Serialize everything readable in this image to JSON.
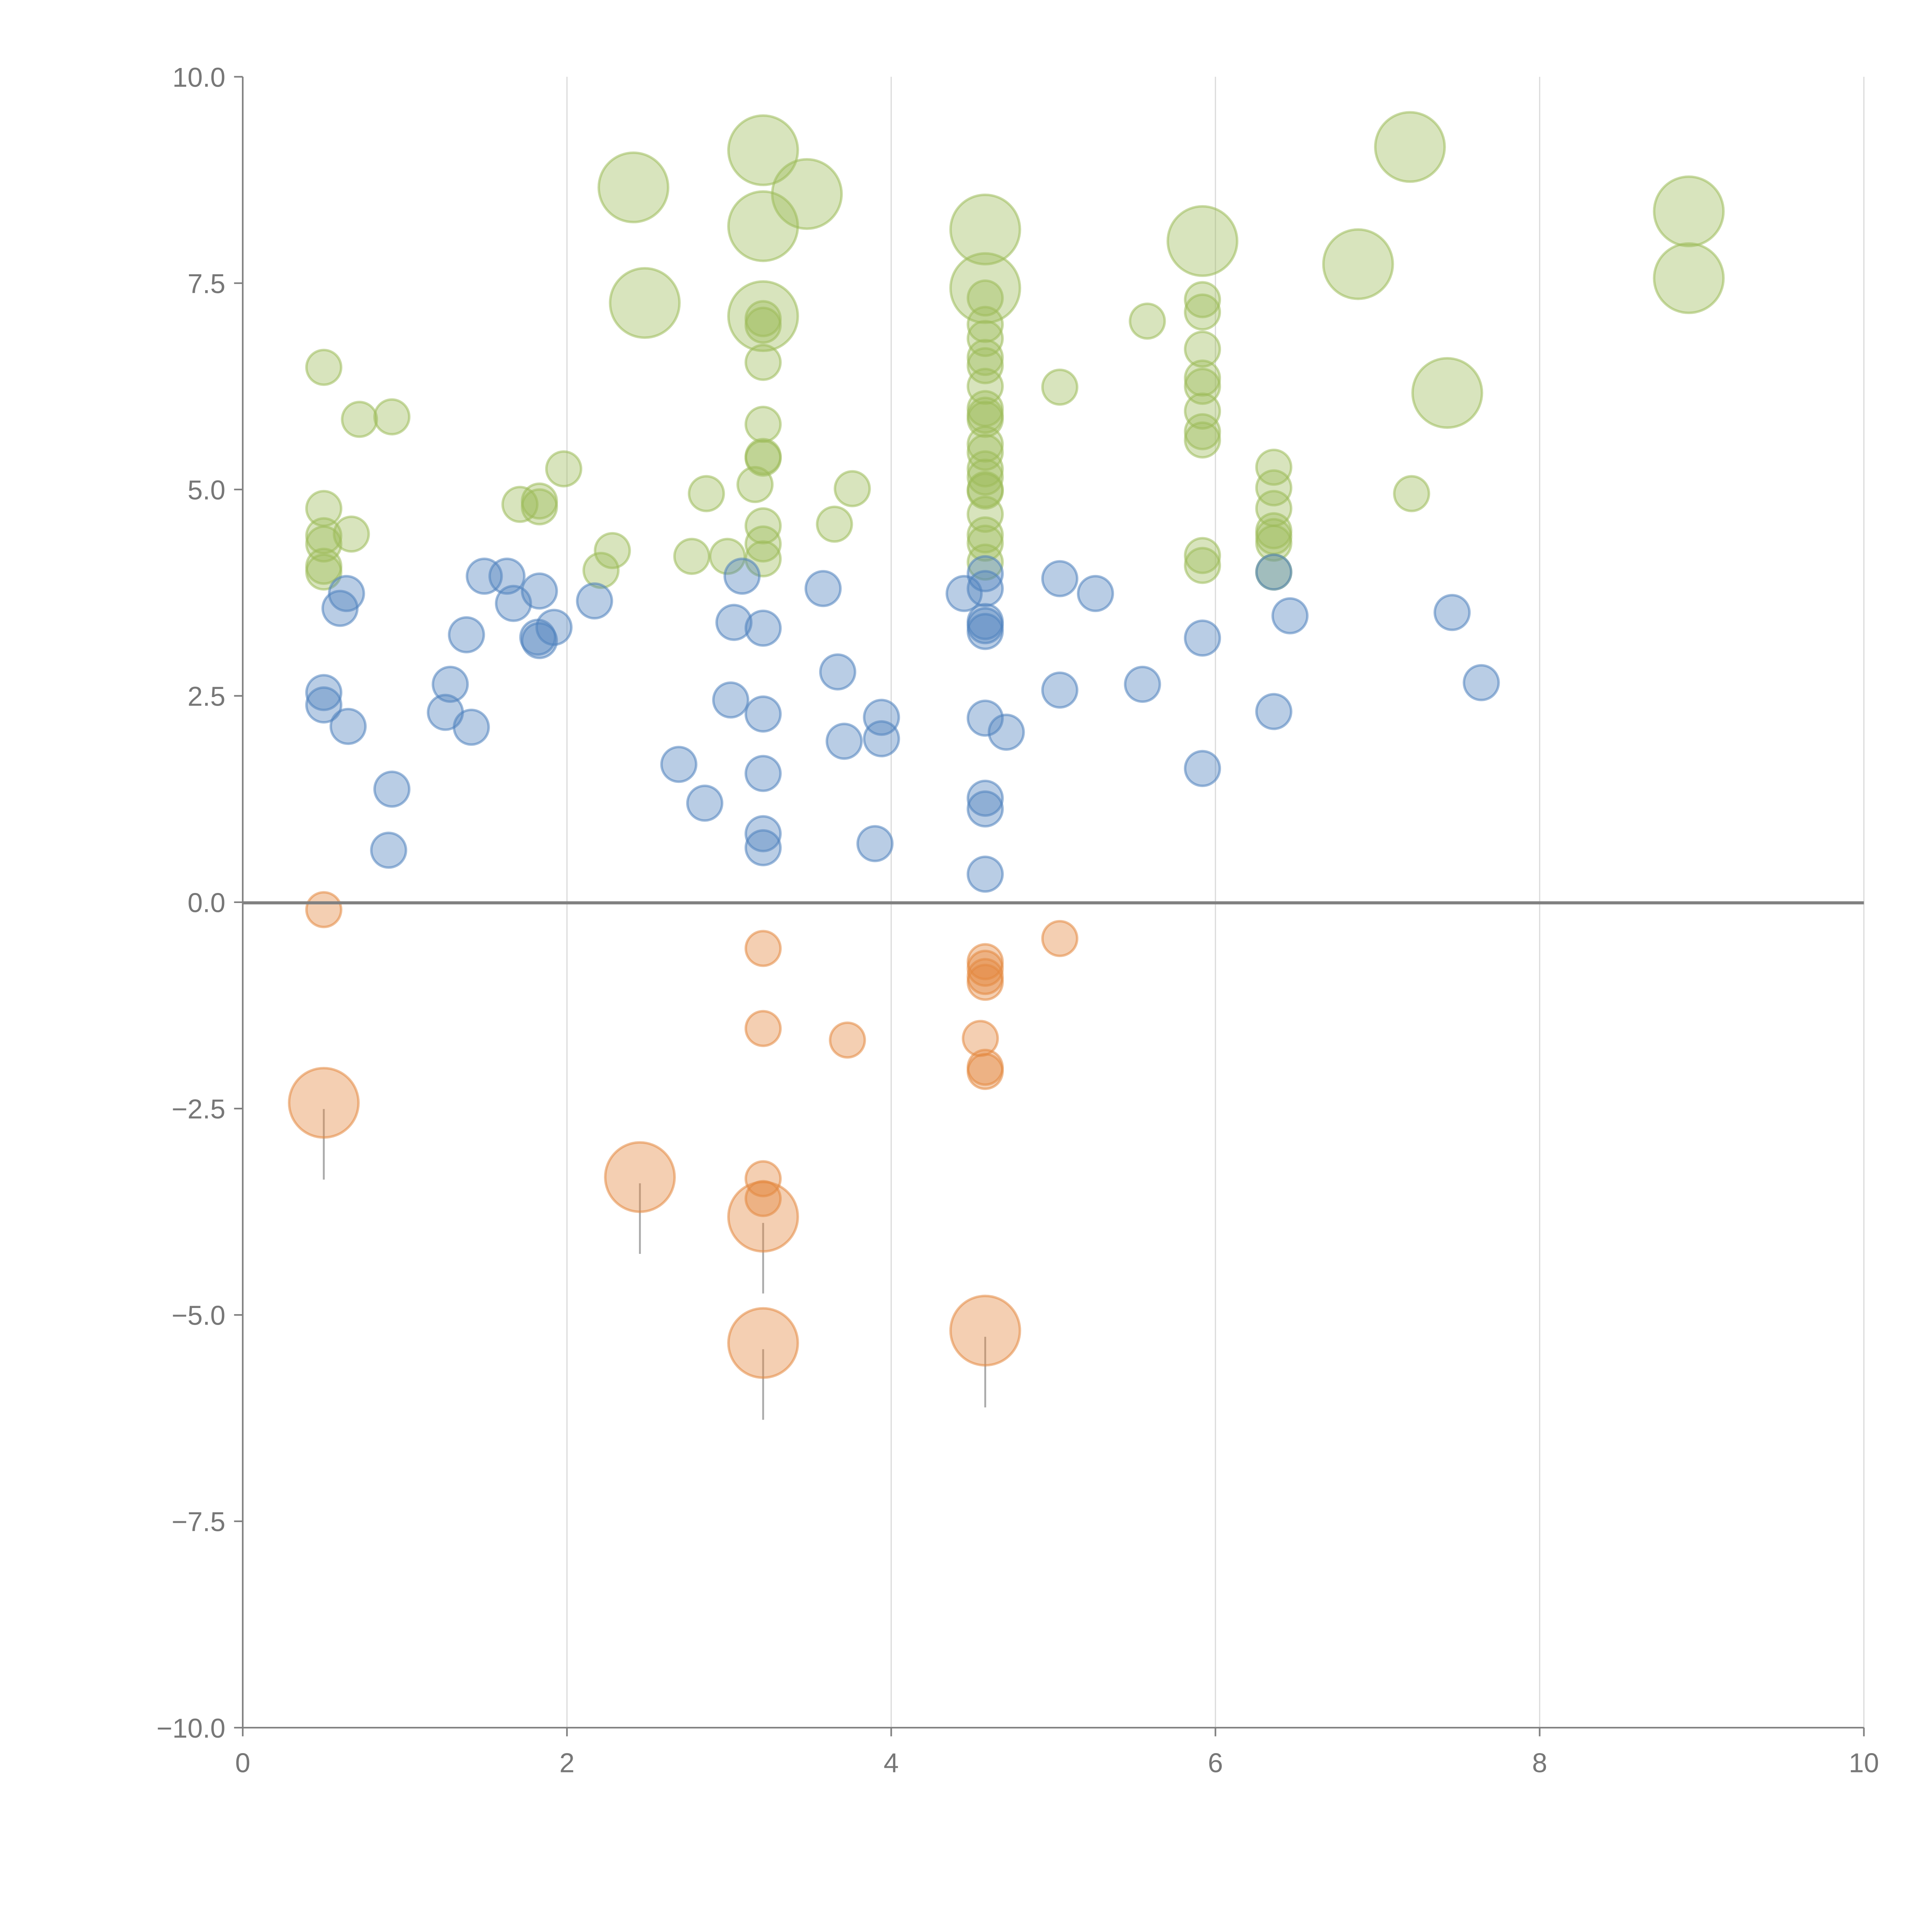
{
  "chart_data": {
    "type": "scatter",
    "title": "",
    "xlabel": "",
    "ylabel": "",
    "xlim": [
      0,
      10
    ],
    "ylim": [
      -10,
      10
    ],
    "x_ticks": [
      "0",
      "2",
      "4",
      "6",
      "8",
      "10"
    ],
    "y_ticks": [
      "10.0",
      "7.5",
      "5.0",
      "2.5",
      "0.0",
      "−2.5",
      "−5.0",
      "−7.5",
      "−10.0"
    ],
    "grid": "vertical",
    "series": [
      {
        "name": "green",
        "color": "#9dbb5a",
        "points": [
          [
            0.5,
            6.48,
            1
          ],
          [
            0.72,
            5.85,
            1
          ],
          [
            0.92,
            5.88,
            1
          ],
          [
            0.5,
            4.77,
            1
          ],
          [
            0.5,
            4.44,
            1
          ],
          [
            0.5,
            4.34,
            1
          ],
          [
            0.67,
            4.46,
            1
          ],
          [
            0.5,
            4.07,
            1
          ],
          [
            0.5,
            4.0,
            1
          ],
          [
            1.71,
            4.82,
            1
          ],
          [
            1.83,
            4.86,
            1
          ],
          [
            1.83,
            4.79,
            1
          ],
          [
            1.98,
            5.25,
            1
          ],
          [
            2.28,
            4.26,
            1
          ],
          [
            2.21,
            4.02,
            1
          ],
          [
            2.86,
            4.95,
            1
          ],
          [
            2.77,
            4.19,
            1
          ],
          [
            2.99,
            4.19,
            1
          ],
          [
            3.16,
            5.06,
            1
          ],
          [
            3.21,
            5.79,
            1
          ],
          [
            3.21,
            5.4,
            1
          ],
          [
            3.21,
            5.38,
            1
          ],
          [
            3.21,
            4.56,
            1
          ],
          [
            3.21,
            4.34,
            1
          ],
          [
            3.21,
            4.16,
            1
          ],
          [
            3.21,
            6.54,
            1
          ],
          [
            3.21,
            7.07,
            1
          ],
          [
            3.21,
            6.99,
            1
          ],
          [
            3.65,
            4.58,
            1
          ],
          [
            3.76,
            5.01,
            1
          ],
          [
            4.58,
            7.32,
            1
          ],
          [
            4.58,
            7.0,
            1
          ],
          [
            4.58,
            6.83,
            1
          ],
          [
            4.58,
            6.6,
            1
          ],
          [
            4.58,
            6.5,
            1
          ],
          [
            4.58,
            6.25,
            1
          ],
          [
            4.58,
            5.98,
            1
          ],
          [
            4.58,
            5.9,
            1
          ],
          [
            4.58,
            5.85,
            1
          ],
          [
            4.58,
            5.55,
            1
          ],
          [
            4.58,
            5.45,
            1
          ],
          [
            4.58,
            5.25,
            1
          ],
          [
            4.58,
            5.15,
            1
          ],
          [
            4.58,
            5.0,
            1
          ],
          [
            4.58,
            4.98,
            1
          ],
          [
            4.58,
            4.7,
            1
          ],
          [
            4.58,
            4.45,
            1
          ],
          [
            4.58,
            4.35,
            1
          ],
          [
            4.58,
            4.12,
            1
          ],
          [
            5.04,
            6.24,
            1
          ],
          [
            5.58,
            7.04,
            1
          ],
          [
            5.92,
            7.3,
            1
          ],
          [
            5.92,
            7.15,
            1
          ],
          [
            5.92,
            6.7,
            1
          ],
          [
            5.92,
            6.35,
            1
          ],
          [
            5.92,
            6.25,
            1
          ],
          [
            5.92,
            5.95,
            1
          ],
          [
            5.92,
            5.7,
            1
          ],
          [
            5.92,
            5.6,
            1
          ],
          [
            5.92,
            4.2,
            1
          ],
          [
            5.92,
            4.08,
            1
          ],
          [
            6.36,
            5.27,
            1
          ],
          [
            6.36,
            5.02,
            1
          ],
          [
            6.36,
            4.77,
            1
          ],
          [
            6.36,
            4.5,
            1
          ],
          [
            6.36,
            4.43,
            1
          ],
          [
            6.36,
            4.35,
            1
          ],
          [
            6.36,
            4.0,
            1
          ],
          [
            7.21,
            4.95,
            1
          ],
          [
            2.41,
            8.66,
            2
          ],
          [
            2.48,
            7.26,
            2
          ],
          [
            3.21,
            9.11,
            2
          ],
          [
            3.21,
            8.19,
            2
          ],
          [
            3.48,
            8.58,
            2
          ],
          [
            3.21,
            7.1,
            2
          ],
          [
            4.58,
            8.15,
            2
          ],
          [
            4.58,
            7.44,
            2
          ],
          [
            5.92,
            8.01,
            2
          ],
          [
            6.88,
            7.73,
            2
          ],
          [
            7.2,
            9.15,
            2
          ],
          [
            7.43,
            6.17,
            2
          ],
          [
            8.92,
            8.37,
            2
          ],
          [
            8.92,
            7.56,
            2
          ]
        ]
      },
      {
        "name": "blue",
        "color": "#4f81bd",
        "points": [
          [
            0.5,
            2.54,
            1
          ],
          [
            0.5,
            2.39,
            1
          ],
          [
            0.65,
            2.13,
            1
          ],
          [
            0.64,
            3.74,
            1
          ],
          [
            0.6,
            3.56,
            1
          ],
          [
            0.92,
            1.37,
            1
          ],
          [
            0.9,
            0.63,
            1
          ],
          [
            1.28,
            2.64,
            1
          ],
          [
            1.25,
            2.3,
            1
          ],
          [
            1.41,
            2.12,
            1
          ],
          [
            1.38,
            3.24,
            1
          ],
          [
            1.49,
            3.95,
            1
          ],
          [
            1.63,
            3.95,
            1
          ],
          [
            1.67,
            3.62,
            1
          ],
          [
            1.83,
            3.77,
            1
          ],
          [
            1.82,
            3.21,
            1
          ],
          [
            1.83,
            3.17,
            1
          ],
          [
            1.92,
            3.33,
            1
          ],
          [
            2.17,
            3.65,
            1
          ],
          [
            2.69,
            1.67,
            1
          ],
          [
            2.85,
            1.2,
            1
          ],
          [
            3.01,
            2.45,
            1
          ],
          [
            3.03,
            3.39,
            1
          ],
          [
            3.08,
            3.95,
            1
          ],
          [
            3.21,
            3.32,
            1
          ],
          [
            3.21,
            2.28,
            1
          ],
          [
            3.21,
            1.56,
            1
          ],
          [
            3.21,
            0.83,
            1
          ],
          [
            3.21,
            0.66,
            1
          ],
          [
            3.58,
            3.8,
            1
          ],
          [
            3.67,
            2.79,
            1
          ],
          [
            3.71,
            1.95,
            1
          ],
          [
            3.94,
            2.24,
            1
          ],
          [
            3.94,
            1.98,
            1
          ],
          [
            3.9,
            0.71,
            1
          ],
          [
            4.45,
            3.74,
            1
          ],
          [
            4.58,
            3.98,
            1
          ],
          [
            4.58,
            3.8,
            1
          ],
          [
            4.58,
            3.4,
            1
          ],
          [
            4.58,
            3.35,
            1
          ],
          [
            4.58,
            3.28,
            1
          ],
          [
            4.58,
            2.23,
            1
          ],
          [
            4.58,
            1.26,
            1
          ],
          [
            4.58,
            1.13,
            1
          ],
          [
            4.58,
            0.34,
            1
          ],
          [
            4.71,
            2.06,
            1
          ],
          [
            5.04,
            3.92,
            1
          ],
          [
            5.04,
            2.57,
            1
          ],
          [
            5.26,
            3.74,
            1
          ],
          [
            5.55,
            2.64,
            1
          ],
          [
            5.92,
            3.2,
            1
          ],
          [
            5.92,
            1.62,
            1
          ],
          [
            6.36,
            4.0,
            1
          ],
          [
            6.36,
            2.31,
            1
          ],
          [
            6.46,
            3.47,
            1
          ],
          [
            7.46,
            3.51,
            1
          ],
          [
            7.64,
            2.66,
            1
          ]
        ]
      },
      {
        "name": "orange",
        "color": "#e3883f",
        "points": [
          [
            0.5,
            -0.09,
            1
          ],
          [
            3.21,
            -0.56,
            1
          ],
          [
            3.21,
            -1.53,
            1
          ],
          [
            3.73,
            -1.67,
            1
          ],
          [
            4.58,
            -0.72,
            1
          ],
          [
            4.58,
            -0.8,
            1
          ],
          [
            4.58,
            -0.9,
            1
          ],
          [
            4.58,
            -0.97,
            1
          ],
          [
            4.58,
            -2.0,
            1
          ],
          [
            4.58,
            -2.05,
            1
          ],
          [
            4.55,
            -1.65,
            1
          ],
          [
            5.04,
            -0.44,
            1
          ],
          [
            3.21,
            -3.35,
            1
          ],
          [
            3.21,
            -3.59,
            1
          ],
          [
            0.5,
            -2.43,
            2
          ],
          [
            2.45,
            -3.33,
            2
          ],
          [
            3.21,
            -3.81,
            2
          ],
          [
            3.21,
            -5.34,
            2
          ],
          [
            4.58,
            -5.19,
            2
          ]
        ]
      }
    ]
  }
}
